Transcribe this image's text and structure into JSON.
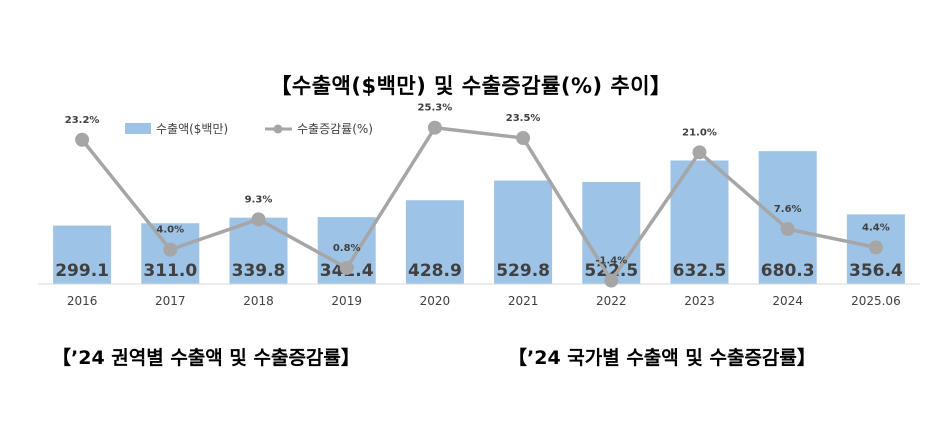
{
  "chart_data": {
    "type": "bar",
    "title": "【수출액($백만) 및 수출증감률(%) 추이】",
    "categories": [
      "2016",
      "2017",
      "2018",
      "2019",
      "2020",
      "2021",
      "2022",
      "2023",
      "2024",
      "2025.06"
    ],
    "series": [
      {
        "name": "수출액($백만)",
        "type": "bar",
        "color": "#9dc3e6",
        "values": [
          299.1,
          311.0,
          339.8,
          342.4,
          428.9,
          529.8,
          522.5,
          632.5,
          680.3,
          356.4
        ],
        "labels": [
          "299.1",
          "311.0",
          "339.8",
          "342.4",
          "428.9",
          "529.8",
          "522.5",
          "632.5",
          "680.3",
          "356.4"
        ]
      },
      {
        "name": "수출증감률(%)",
        "type": "line",
        "color": "#a6a6a6",
        "values": [
          23.2,
          4.0,
          9.3,
          0.8,
          25.3,
          23.5,
          -1.4,
          21.0,
          7.6,
          4.4
        ],
        "labels": [
          "23.2%",
          "4.0%",
          "9.3%",
          "0.8%",
          "25.3%",
          "23.5%",
          "-1.4%",
          "21.0%",
          "7.6%",
          "4.4%"
        ]
      }
    ],
    "bar_ylim": [
      0,
      850
    ],
    "line_ylim": [
      -2,
      27
    ],
    "legend_position": "top-left",
    "grid": false
  },
  "headings": {
    "region": "【’24 권역별 수출액 및 수출증감률】",
    "country": "【’24 국가별 수출액 및 수출증감률】"
  }
}
